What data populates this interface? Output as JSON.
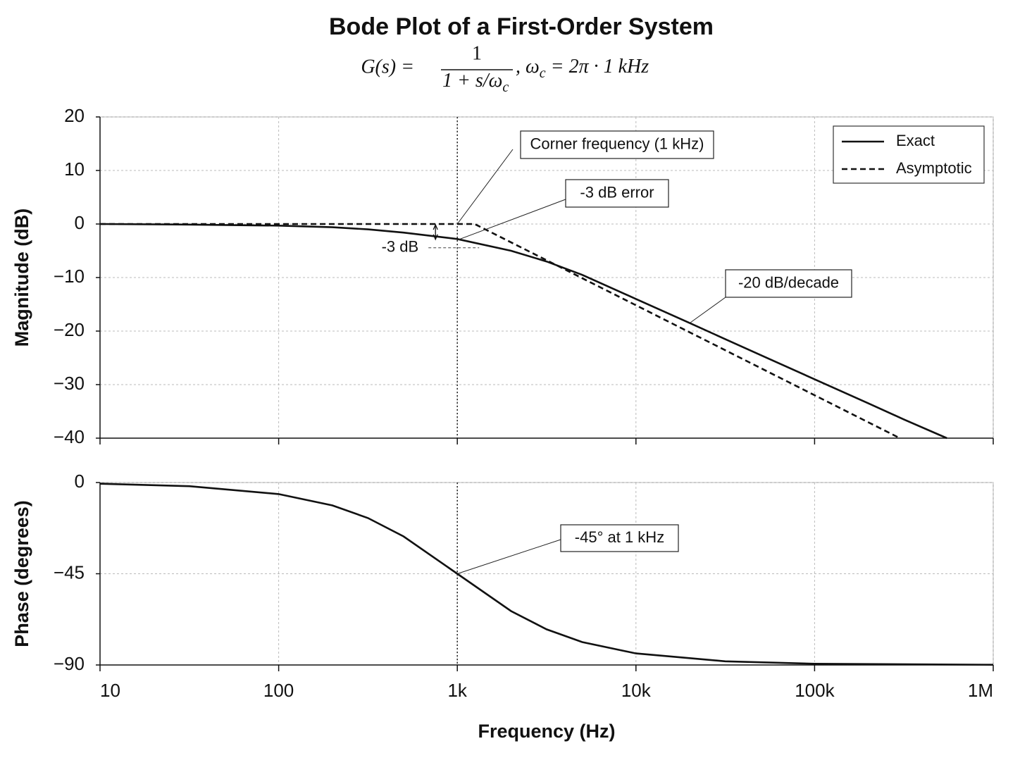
{
  "title": "Bode Plot of a First-Order System",
  "formula": {
    "lhs": "G(s) =",
    "numerator": "1",
    "denominator": "1 + s/ω",
    "denominator_sub": "c",
    "mid": ", ω",
    "mid_sub": "c",
    "rhs": " = 2π · 1 kHz"
  },
  "chart_data": [
    {
      "type": "line",
      "ylabel": "Magnitude (dB)",
      "xscale": "log",
      "grid": true,
      "legend": "upper right",
      "xlim": [
        10,
        1000000
      ],
      "xticks": [
        10,
        100,
        1000,
        10000,
        100000,
        1000000
      ],
      "xtick_labels": false,
      "ylim": [
        -40,
        20
      ],
      "yticks": [
        {
          "value": -40,
          "label": "−40"
        },
        {
          "value": -30,
          "label": "−30"
        },
        {
          "value": -20,
          "label": "−20"
        },
        {
          "value": -10,
          "label": "−10"
        },
        0,
        10,
        20
      ],
      "vline": 1000,
      "series": [
        {
          "name": "Exact",
          "color": "#111111",
          "linestyle": "solid",
          "x": [
            10,
            31.6,
            100,
            200,
            316,
            500,
            1000,
            2000,
            3160,
            5000,
            10000,
            20000,
            31600,
            50000,
            100000,
            200000,
            316000,
            550000
          ],
          "values": [
            0,
            -0.1,
            -0.3,
            -0.6,
            -1.0,
            -1.6,
            -2.8,
            -5,
            -7,
            -9.5,
            -14,
            -18.5,
            -21.5,
            -24.5,
            -29,
            -33.5,
            -36.5,
            -40
          ]
        },
        {
          "name": "Asymptotic",
          "color": "#111111",
          "linestyle": "dashed",
          "x": [
            10,
            1250,
            300000
          ],
          "values": [
            0,
            0,
            -40
          ]
        }
      ],
      "error_marker": {
        "text": "-3 dB",
        "from": 0,
        "to": -3
      },
      "annotations": [
        {
          "text": "Corner frequency (1 kHz)",
          "x": 1000,
          "y": 0
        },
        {
          "text": "-3 dB error",
          "x": 1000,
          "y": -3
        },
        {
          "text": "-20 dB/decade",
          "x": 20000,
          "y": -18.5
        }
      ]
    },
    {
      "type": "line",
      "ylabel": "Phase (degrees)",
      "xlabel": "Frequency (Hz)",
      "xscale": "log",
      "grid": true,
      "xlim": [
        10,
        1000000
      ],
      "xticks": [
        10,
        100,
        {
          "value": 1000,
          "label": "1k"
        },
        {
          "value": 10000,
          "label": "10k"
        },
        {
          "value": 100000,
          "label": "100k"
        },
        {
          "value": 1000000,
          "label": "1M"
        }
      ],
      "xtick_labels": true,
      "ylim": [
        -90,
        0
      ],
      "yticks": [
        {
          "value": -90,
          "label": "−90"
        },
        {
          "value": -45,
          "label": "−45"
        },
        0
      ],
      "vline": 1000,
      "series": [
        {
          "name": "Phase",
          "color": "#111111",
          "linestyle": "solid",
          "x": [
            10,
            31.6,
            100,
            200,
            316,
            500,
            1000,
            2000,
            3160,
            5000,
            10000,
            31600,
            100000,
            1000000
          ],
          "values": [
            -0.6,
            -1.8,
            -5.7,
            -11.3,
            -17.5,
            -26.6,
            -45,
            -63.4,
            -72.4,
            -78.7,
            -84.3,
            -88.2,
            -89.4,
            -89.9
          ]
        }
      ],
      "annotations": [
        {
          "text": "-45° at 1 kHz",
          "x": 1000,
          "y": -45
        }
      ]
    }
  ]
}
